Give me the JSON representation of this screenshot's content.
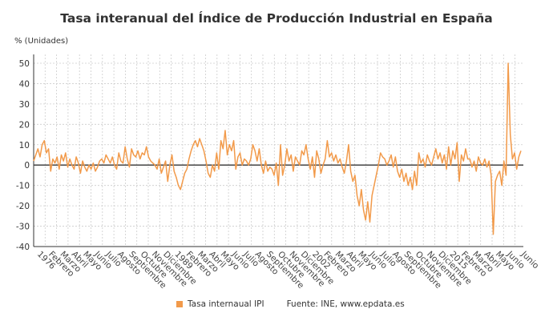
{
  "chart_data": {
    "type": "line",
    "title": "Tasa interanual del Índice de Producción Industrial en España",
    "ylabel": "% (Unidades)",
    "ylim": [
      -40,
      50
    ],
    "yticks": [
      50,
      40,
      30,
      20,
      10,
      0,
      -10,
      -20,
      -30,
      -40
    ],
    "xticks": [
      "1976",
      "Febrero",
      "Marzo",
      "Abril",
      "Mayo",
      "Junio",
      "Julio",
      "Agosto",
      "Septiembre",
      "Octubre",
      "Noviembre",
      "Diciembre",
      "1989",
      "Febrero",
      "Marzo",
      "Abril",
      "Mayo",
      "Junio",
      "Julio",
      "Agosto",
      "Septiembre",
      "Octubre",
      "Noviembre",
      "Diciembre",
      "2002",
      "Febrero",
      "Marzo",
      "Abril",
      "Mayo",
      "Junio",
      "Julio",
      "Agosto",
      "Septiembre",
      "Octubre",
      "Noviembre",
      "Diciembre",
      "2015",
      "Febrero",
      "Marzo",
      "Abril",
      "Mayo",
      "Junio",
      "Junio"
    ],
    "grid": true,
    "legend_position": "bottom",
    "series": [
      {
        "name": "Tasa internaual IPI",
        "color": "#f29a4a",
        "values": [
          2,
          5,
          8,
          4,
          10,
          12,
          6,
          8,
          -3,
          3,
          1,
          4,
          -2,
          5,
          2,
          6,
          -1,
          3,
          0,
          -2,
          4,
          1,
          -4,
          2,
          -1,
          -3,
          0,
          -2,
          1,
          -3,
          -1,
          2,
          3,
          1,
          5,
          3,
          1,
          4,
          0,
          -2,
          6,
          2,
          1,
          9,
          3,
          -1,
          8,
          5,
          4,
          7,
          3,
          6,
          5,
          9,
          4,
          2,
          1,
          0,
          -2,
          3,
          -4,
          -1,
          2,
          -8,
          0,
          5,
          -3,
          -6,
          -10,
          -12,
          -8,
          -4,
          -2,
          3,
          7,
          10,
          12,
          9,
          13,
          10,
          7,
          2,
          -4,
          -6,
          0,
          -3,
          6,
          -2,
          12,
          8,
          17,
          5,
          10,
          7,
          12,
          -2,
          4,
          6,
          0,
          3,
          2,
          0,
          3,
          10,
          7,
          2,
          8,
          0,
          -4,
          2,
          -3,
          -1,
          -2,
          -5,
          1,
          -10,
          10,
          -5,
          0,
          8,
          2,
          5,
          -3,
          4,
          2,
          0,
          7,
          5,
          10,
          3,
          -2,
          4,
          -6,
          7,
          3,
          -4,
          0,
          3,
          12,
          4,
          6,
          2,
          5,
          1,
          3,
          -1,
          -4,
          2,
          10,
          -3,
          -8,
          -5,
          -15,
          -20,
          -12,
          -22,
          -27,
          -18,
          -28,
          -15,
          -10,
          -5,
          0,
          6,
          4,
          3,
          0,
          2,
          5,
          -1,
          4,
          -3,
          -6,
          -2,
          -8,
          -4,
          -10,
          -6,
          -12,
          -3,
          -10,
          6,
          1,
          3,
          -1,
          5,
          2,
          0,
          4,
          8,
          3,
          6,
          1,
          5,
          -2,
          9,
          0,
          7,
          3,
          11,
          -8,
          5,
          2,
          8,
          3,
          3,
          -1,
          2,
          -3,
          4,
          1,
          0,
          3,
          -1,
          2,
          -5,
          -34,
          -8,
          -5,
          -3,
          -10,
          2,
          -5,
          50,
          15,
          3,
          6,
          -2,
          4,
          7
        ]
      }
    ]
  },
  "legend": {
    "label": "Tasa internaual IPI"
  },
  "source": "Fuente: INE, www.epdata.es"
}
